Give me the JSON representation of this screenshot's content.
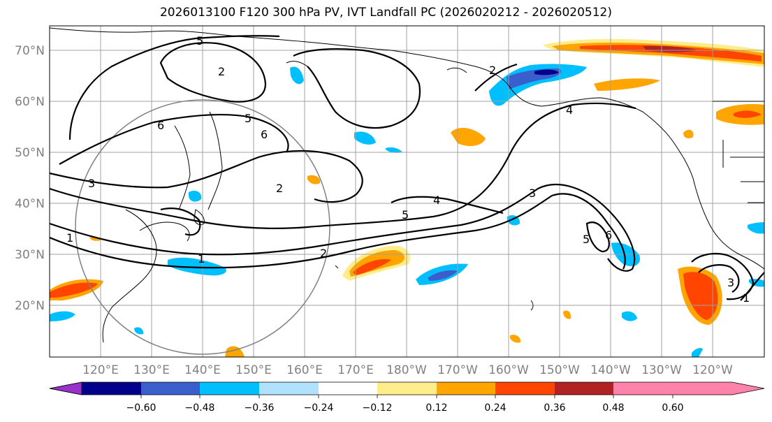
{
  "title": "2026013100 F120 300 hPa PV, IVT Landfall PC (2026020212 - 2026020512)",
  "map": {
    "lat_labels": [
      "70°N",
      "60°N",
      "50°N",
      "40°N",
      "30°N",
      "20°N"
    ],
    "lon_labels": [
      "120°E",
      "130°E",
      "140°E",
      "150°E",
      "160°E",
      "170°E",
      "180°W",
      "170°W",
      "160°W",
      "150°W",
      "140°W",
      "130°W",
      "120°W"
    ],
    "contour_labels": [
      "5",
      "2",
      "6",
      "5",
      "6",
      "3",
      "2",
      "1",
      "1",
      "2",
      "5",
      "4",
      "2",
      "4",
      "3",
      "6",
      "5",
      "3",
      "1"
    ]
  },
  "colorbar": {
    "tick_labels": [
      "−0.60",
      "−0.48",
      "−0.36",
      "−0.24",
      "−0.12",
      "0.12",
      "0.24",
      "0.36",
      "0.48",
      "0.60"
    ],
    "colors": [
      "#9932cc",
      "#00008b",
      "#3a5fcd",
      "#00bfff",
      "#b0e2ff",
      "#ffffff",
      "#ffec8b",
      "#ffa500",
      "#ff4500",
      "#b22222",
      "#ff82ab"
    ]
  }
}
